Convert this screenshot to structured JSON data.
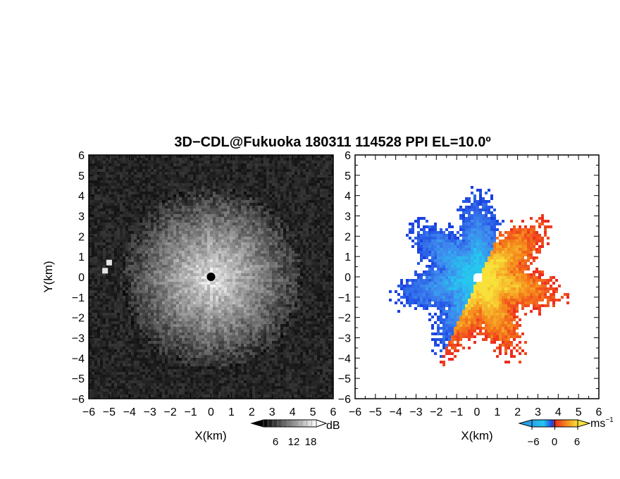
{
  "figure": {
    "title": "3D−CDL@Fukuoka 180311 114528 PPI EL=10.0º"
  },
  "chart_data": [
    {
      "type": "heatmap",
      "panel": "left",
      "quantity": "backscatter intensity",
      "colormap": "grayscale",
      "xlabel": "X(km)",
      "ylabel": "Y(km)",
      "xlim": [
        -6,
        6
      ],
      "ylim": [
        -6,
        6
      ],
      "x_ticks": [
        "−6",
        "−5",
        "−4",
        "−3",
        "−2",
        "−1",
        "0",
        "1",
        "2",
        "3",
        "4",
        "5",
        "6"
      ],
      "y_ticks": [
        "6",
        "5",
        "4",
        "3",
        "2",
        "1",
        "0",
        "−1",
        "−2",
        "−3",
        "−4",
        "−5",
        "−6"
      ],
      "colorbar": {
        "label": "dB",
        "ticks": [
          "6",
          "12",
          "18"
        ],
        "range": [
          0,
          22
        ]
      },
      "features": {
        "radar_center": [
          0,
          0
        ],
        "echo_radius_km": 4.5,
        "bright_spots": [
          [
            -5.2,
            0.3
          ],
          [
            -5.0,
            0.7
          ]
        ]
      }
    },
    {
      "type": "heatmap",
      "panel": "right",
      "quantity": "radial velocity",
      "colormap": "blue-red diverging",
      "xlabel": "X(km)",
      "xlim": [
        -6,
        6
      ],
      "ylim": [
        -6,
        6
      ],
      "x_ticks": [
        "−6",
        "−5",
        "−4",
        "−3",
        "−2",
        "−1",
        "0",
        "1",
        "2",
        "3",
        "4",
        "5",
        "6"
      ],
      "y_ticks": [
        "6",
        "5",
        "4",
        "3",
        "2",
        "1",
        "0",
        "−1",
        "−2",
        "−3",
        "−4",
        "−5",
        "−6"
      ],
      "colorbar": {
        "label": "ms",
        "label_superscript": "−1",
        "ticks": [
          "−6",
          "0",
          "6"
        ],
        "range": [
          -7,
          7
        ]
      },
      "features": {
        "zero_line_angle_deg": 25,
        "echo_radius_km": 4.3,
        "approaching_side": "north-west",
        "receding_side": "south-east"
      }
    }
  ],
  "colors": {
    "vel_blue_dark": "#1a3fe0",
    "vel_blue": "#3f88ee",
    "vel_cyan": "#26c8ee",
    "vel_red": "#ee2a1e",
    "vel_orange": "#f58a1c",
    "vel_yellow": "#f8e13a",
    "gray_bg": "#1c1c1c"
  }
}
